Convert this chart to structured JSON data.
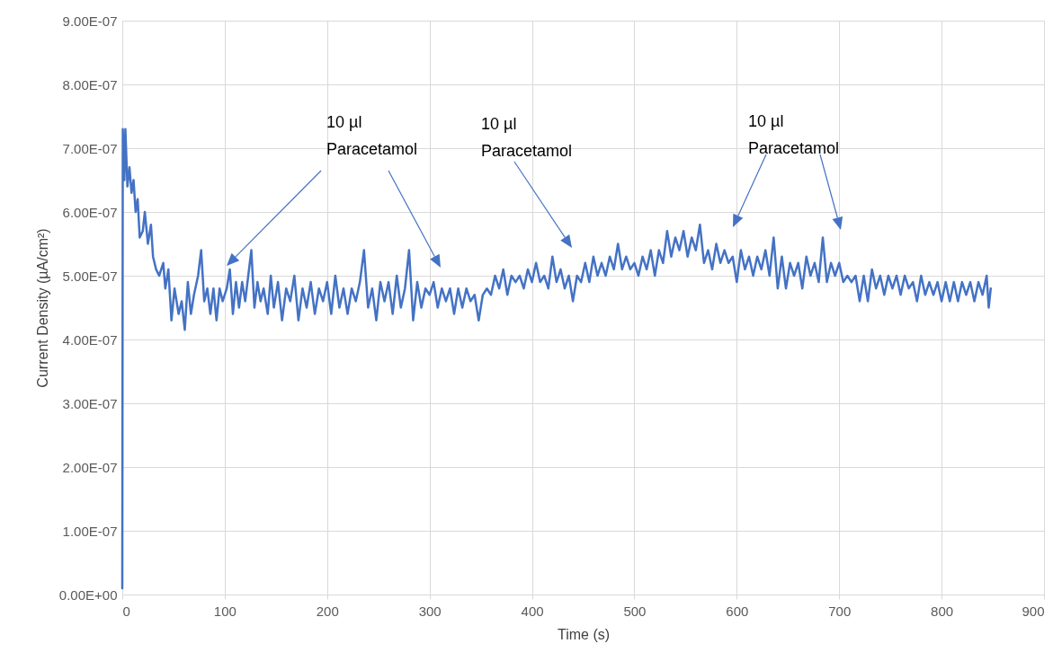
{
  "chart_data": {
    "type": "line",
    "xlabel": "Time (s)",
    "ylabel": "Current Density (µA/cm²)",
    "xlim": [
      0,
      900
    ],
    "xticks": [
      0,
      100,
      200,
      300,
      400,
      500,
      600,
      700,
      800,
      900
    ],
    "ylim": [
      0,
      9e-07
    ],
    "yticks": [
      {
        "value": 0,
        "label": "0.00E+00"
      },
      {
        "value": 1e-07,
        "label": "1.00E-07"
      },
      {
        "value": 2e-07,
        "label": "2.00E-07"
      },
      {
        "value": 3e-07,
        "label": "3.00E-07"
      },
      {
        "value": 4e-07,
        "label": "4.00E-07"
      },
      {
        "value": 5e-07,
        "label": "5.00E-07"
      },
      {
        "value": 6e-07,
        "label": "6.00E-07"
      },
      {
        "value": 7e-07,
        "label": "7.00E-07"
      },
      {
        "value": 8e-07,
        "label": "8.00E-07"
      },
      {
        "value": 9e-07,
        "label": "9.00E-07"
      }
    ],
    "grid": true,
    "marker": "none",
    "line_style": "solid",
    "annotations": [
      "10 µl\nParacetamol",
      "10 µl\nParacetamol",
      "10 µl\nParacetamol"
    ],
    "x": [
      0,
      0.5,
      2,
      3,
      5,
      7,
      9,
      11,
      13,
      15,
      17,
      20,
      22,
      25,
      28,
      30,
      33,
      36,
      40,
      42,
      45,
      48,
      51,
      55,
      58,
      61,
      64,
      67,
      70,
      74,
      77,
      80,
      83,
      86,
      89,
      92,
      95,
      98,
      102,
      105,
      108,
      111,
      114,
      117,
      120,
      123,
      126,
      129,
      132,
      135,
      138,
      142,
      145,
      148,
      152,
      156,
      160,
      164,
      168,
      172,
      176,
      180,
      184,
      188,
      192,
      196,
      200,
      204,
      208,
      212,
      216,
      220,
      224,
      228,
      232,
      236,
      240,
      244,
      248,
      252,
      256,
      260,
      264,
      268,
      272,
      276,
      280,
      284,
      288,
      292,
      296,
      300,
      304,
      308,
      312,
      316,
      320,
      324,
      328,
      332,
      336,
      340,
      344,
      348,
      352,
      356,
      360,
      364,
      368,
      372,
      376,
      380,
      384,
      388,
      392,
      396,
      400,
      404,
      408,
      412,
      416,
      420,
      424,
      428,
      432,
      436,
      440,
      444,
      448,
      452,
      456,
      460,
      464,
      468,
      472,
      476,
      480,
      484,
      488,
      492,
      496,
      500,
      504,
      508,
      512,
      516,
      520,
      524,
      528,
      532,
      536,
      540,
      544,
      548,
      552,
      556,
      560,
      564,
      568,
      572,
      576,
      580,
      584,
      588,
      592,
      596,
      600,
      604,
      608,
      612,
      616,
      620,
      624,
      628,
      632,
      636,
      640,
      644,
      648,
      652,
      656,
      660,
      664,
      668,
      672,
      676,
      680,
      684,
      688,
      692,
      696,
      700,
      704,
      708,
      712,
      716,
      720,
      724,
      728,
      732,
      736,
      740,
      744,
      748,
      752,
      756,
      760,
      764,
      768,
      772,
      776,
      780,
      784,
      788,
      792,
      796,
      800,
      804,
      808,
      812,
      816,
      820,
      824,
      828,
      832,
      836,
      840,
      844,
      846,
      848
    ],
    "series": [
      {
        "color": "#4472c4",
        "values": [
          1e-08,
          7.3e-07,
          6.5e-07,
          7.3e-07,
          6.4e-07,
          6.7e-07,
          6.3e-07,
          6.5e-07,
          6e-07,
          6.2e-07,
          5.6e-07,
          5.7e-07,
          6e-07,
          5.5e-07,
          5.8e-07,
          5.3e-07,
          5.1e-07,
          5e-07,
          5.2e-07,
          4.8e-07,
          5.1e-07,
          4.3e-07,
          4.8e-07,
          4.4e-07,
          4.6e-07,
          4.15e-07,
          4.9e-07,
          4.4e-07,
          4.7e-07,
          5e-07,
          5.4e-07,
          4.6e-07,
          4.8e-07,
          4.4e-07,
          4.8e-07,
          4.3e-07,
          4.8e-07,
          4.6e-07,
          4.8e-07,
          5.1e-07,
          4.4e-07,
          4.9e-07,
          4.5e-07,
          4.9e-07,
          4.6e-07,
          5e-07,
          5.4e-07,
          4.5e-07,
          4.9e-07,
          4.6e-07,
          4.8e-07,
          4.4e-07,
          5e-07,
          4.5e-07,
          4.9e-07,
          4.3e-07,
          4.8e-07,
          4.6e-07,
          5e-07,
          4.3e-07,
          4.8e-07,
          4.5e-07,
          4.9e-07,
          4.4e-07,
          4.8e-07,
          4.6e-07,
          4.9e-07,
          4.4e-07,
          5e-07,
          4.5e-07,
          4.8e-07,
          4.4e-07,
          4.8e-07,
          4.6e-07,
          4.9e-07,
          5.4e-07,
          4.5e-07,
          4.8e-07,
          4.3e-07,
          4.9e-07,
          4.6e-07,
          4.9e-07,
          4.4e-07,
          5e-07,
          4.5e-07,
          4.8e-07,
          5.4e-07,
          4.3e-07,
          4.9e-07,
          4.5e-07,
          4.8e-07,
          4.7e-07,
          4.9e-07,
          4.5e-07,
          4.8e-07,
          4.6e-07,
          4.8e-07,
          4.4e-07,
          4.8e-07,
          4.5e-07,
          4.8e-07,
          4.6e-07,
          4.7e-07,
          4.3e-07,
          4.7e-07,
          4.8e-07,
          4.7e-07,
          5e-07,
          4.8e-07,
          5.1e-07,
          4.7e-07,
          5e-07,
          4.9e-07,
          5e-07,
          4.8e-07,
          5.1e-07,
          4.9e-07,
          5.2e-07,
          4.9e-07,
          5e-07,
          4.8e-07,
          5.3e-07,
          4.9e-07,
          5.1e-07,
          4.8e-07,
          5e-07,
          4.6e-07,
          5e-07,
          4.9e-07,
          5.2e-07,
          4.9e-07,
          5.3e-07,
          5e-07,
          5.2e-07,
          5e-07,
          5.3e-07,
          5.1e-07,
          5.5e-07,
          5.1e-07,
          5.3e-07,
          5.1e-07,
          5.2e-07,
          5e-07,
          5.3e-07,
          5.1e-07,
          5.4e-07,
          5e-07,
          5.4e-07,
          5.2e-07,
          5.7e-07,
          5.3e-07,
          5.6e-07,
          5.4e-07,
          5.7e-07,
          5.3e-07,
          5.6e-07,
          5.4e-07,
          5.8e-07,
          5.2e-07,
          5.4e-07,
          5.1e-07,
          5.5e-07,
          5.2e-07,
          5.4e-07,
          5.2e-07,
          5.3e-07,
          4.9e-07,
          5.4e-07,
          5.1e-07,
          5.3e-07,
          5e-07,
          5.3e-07,
          5.1e-07,
          5.4e-07,
          5e-07,
          5.6e-07,
          4.8e-07,
          5.3e-07,
          4.8e-07,
          5.2e-07,
          5e-07,
          5.2e-07,
          4.8e-07,
          5.3e-07,
          5e-07,
          5.2e-07,
          4.9e-07,
          5.6e-07,
          4.9e-07,
          5.2e-07,
          5e-07,
          5.2e-07,
          4.9e-07,
          5e-07,
          4.9e-07,
          5e-07,
          4.6e-07,
          5e-07,
          4.6e-07,
          5.1e-07,
          4.8e-07,
          5e-07,
          4.7e-07,
          5e-07,
          4.8e-07,
          5e-07,
          4.7e-07,
          5e-07,
          4.8e-07,
          4.9e-07,
          4.6e-07,
          5e-07,
          4.7e-07,
          4.9e-07,
          4.7e-07,
          4.9e-07,
          4.6e-07,
          4.9e-07,
          4.6e-07,
          4.9e-07,
          4.6e-07,
          4.9e-07,
          4.7e-07,
          4.9e-07,
          4.6e-07,
          4.9e-07,
          4.7e-07,
          5e-07,
          4.5e-07,
          4.8e-07
        ]
      }
    ]
  }
}
